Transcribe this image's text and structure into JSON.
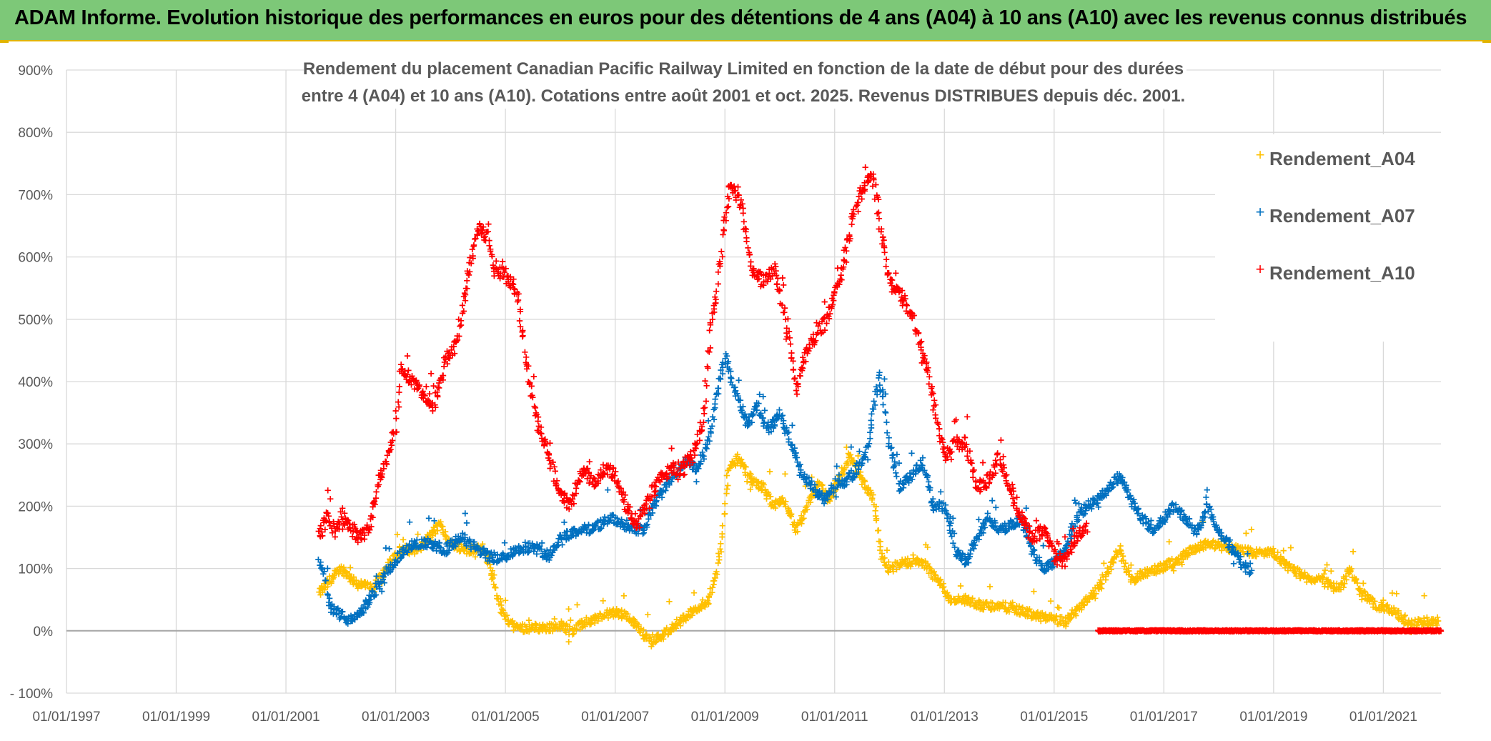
{
  "banner": {
    "title": "ADAM Informe. Evolution historique des performances en euros pour des détentions de 4 ans (A04) à 10 ans (A10) avec les revenus connus distribués"
  },
  "colors": {
    "banner_bg": "#7dc878",
    "banner_border": "#e0b400",
    "A04": "#ffc000",
    "A07": "#0070c0",
    "A10": "#ff0000",
    "grid": "#d9d9d9",
    "axis_text": "#595959"
  },
  "chart_data": {
    "type": "scatter",
    "title_line1": "Rendement du placement Canadian Pacific Railway Limited en fonction de la date de début pour des durées",
    "title_line2": "entre 4 (A04) et 10 ans (A10). Cotations entre août 2001 et oct. 2025. Revenus DISTRIBUES depuis déc. 2001.",
    "xlabel": "",
    "ylabel": "",
    "x_range": [
      1997.0,
      2022.05
    ],
    "ylim": [
      -100,
      900
    ],
    "y_ticks": [
      -100,
      0,
      100,
      200,
      300,
      400,
      500,
      600,
      700,
      800,
      900
    ],
    "y_tick_labels": [
      "- 100%",
      "0%",
      "100%",
      "200%",
      "300%",
      "400%",
      "500%",
      "600%",
      "700%",
      "800%",
      "900%"
    ],
    "x_ticks": [
      1997,
      1999,
      2001,
      2003,
      2005,
      2007,
      2009,
      2011,
      2013,
      2015,
      2017,
      2019,
      2021
    ],
    "x_tick_labels": [
      "01/01/1997",
      "01/01/1999",
      "01/01/2001",
      "01/01/2003",
      "01/01/2005",
      "01/01/2007",
      "01/01/2009",
      "01/01/2011",
      "01/01/2013",
      "01/01/2015",
      "01/01/2017",
      "01/01/2019",
      "01/01/2021"
    ],
    "legend_position": "top-right",
    "marker": "+",
    "series": [
      {
        "name": "Rendement_A04",
        "color": "#ffc000",
        "points": [
          [
            2001.6,
            60
          ],
          [
            2001.8,
            80
          ],
          [
            2002.0,
            100
          ],
          [
            2002.3,
            75
          ],
          [
            2002.6,
            70
          ],
          [
            2002.9,
            110
          ],
          [
            2003.1,
            130
          ],
          [
            2003.4,
            130
          ],
          [
            2003.8,
            170
          ],
          [
            2004.0,
            140
          ],
          [
            2004.3,
            130
          ],
          [
            2004.6,
            135
          ],
          [
            2004.8,
            80
          ],
          [
            2004.9,
            40
          ],
          [
            2005.0,
            20
          ],
          [
            2005.2,
            5
          ],
          [
            2005.5,
            5
          ],
          [
            2005.8,
            5
          ],
          [
            2006.0,
            10
          ],
          [
            2006.2,
            0
          ],
          [
            2006.5,
            15
          ],
          [
            2006.8,
            25
          ],
          [
            2007.0,
            30
          ],
          [
            2007.3,
            20
          ],
          [
            2007.5,
            -5
          ],
          [
            2007.7,
            -15
          ],
          [
            2007.9,
            -5
          ],
          [
            2008.1,
            10
          ],
          [
            2008.4,
            30
          ],
          [
            2008.7,
            50
          ],
          [
            2008.85,
            90
          ],
          [
            2008.95,
            150
          ],
          [
            2009.05,
            250
          ],
          [
            2009.2,
            280
          ],
          [
            2009.5,
            240
          ],
          [
            2009.7,
            230
          ],
          [
            2009.9,
            200
          ],
          [
            2010.1,
            210
          ],
          [
            2010.3,
            160
          ],
          [
            2010.5,
            200
          ],
          [
            2010.7,
            240
          ],
          [
            2010.9,
            210
          ],
          [
            2011.1,
            250
          ],
          [
            2011.3,
            280
          ],
          [
            2011.5,
            240
          ],
          [
            2011.7,
            210
          ],
          [
            2011.85,
            120
          ],
          [
            2012.0,
            100
          ],
          [
            2012.3,
            110
          ],
          [
            2012.6,
            110
          ],
          [
            2012.9,
            80
          ],
          [
            2013.1,
            50
          ],
          [
            2013.4,
            50
          ],
          [
            2013.7,
            40
          ],
          [
            2014.0,
            40
          ],
          [
            2014.3,
            35
          ],
          [
            2014.6,
            25
          ],
          [
            2014.9,
            20
          ],
          [
            2015.2,
            15
          ],
          [
            2015.5,
            40
          ],
          [
            2015.8,
            70
          ],
          [
            2016.0,
            100
          ],
          [
            2016.2,
            130
          ],
          [
            2016.4,
            80
          ],
          [
            2016.6,
            90
          ],
          [
            2016.9,
            100
          ],
          [
            2017.2,
            110
          ],
          [
            2017.5,
            130
          ],
          [
            2017.8,
            140
          ],
          [
            2018.1,
            135
          ],
          [
            2018.4,
            130
          ],
          [
            2018.7,
            125
          ],
          [
            2019.0,
            125
          ],
          [
            2019.3,
            100
          ],
          [
            2019.6,
            85
          ],
          [
            2019.9,
            80
          ],
          [
            2020.2,
            65
          ],
          [
            2020.4,
            100
          ],
          [
            2020.6,
            60
          ],
          [
            2020.9,
            40
          ],
          [
            2021.2,
            30
          ],
          [
            2021.5,
            10
          ],
          [
            2021.8,
            15
          ],
          [
            2022.0,
            15
          ]
        ]
      },
      {
        "name": "Rendement_A07",
        "color": "#0070c0",
        "points": [
          [
            2001.6,
            110
          ],
          [
            2001.7,
            90
          ],
          [
            2001.8,
            40
          ],
          [
            2002.0,
            25
          ],
          [
            2002.2,
            15
          ],
          [
            2002.4,
            35
          ],
          [
            2002.6,
            60
          ],
          [
            2002.8,
            90
          ],
          [
            2003.0,
            115
          ],
          [
            2003.3,
            140
          ],
          [
            2003.6,
            140
          ],
          [
            2003.9,
            130
          ],
          [
            2004.2,
            150
          ],
          [
            2004.5,
            130
          ],
          [
            2004.7,
            120
          ],
          [
            2004.9,
            115
          ],
          [
            2005.2,
            130
          ],
          [
            2005.5,
            135
          ],
          [
            2005.8,
            120
          ],
          [
            2006.0,
            150
          ],
          [
            2006.3,
            160
          ],
          [
            2006.6,
            165
          ],
          [
            2006.9,
            180
          ],
          [
            2007.2,
            170
          ],
          [
            2007.5,
            160
          ],
          [
            2007.7,
            200
          ],
          [
            2007.9,
            230
          ],
          [
            2008.1,
            250
          ],
          [
            2008.3,
            270
          ],
          [
            2008.5,
            260
          ],
          [
            2008.7,
            300
          ],
          [
            2008.9,
            400
          ],
          [
            2009.0,
            440
          ],
          [
            2009.2,
            380
          ],
          [
            2009.4,
            330
          ],
          [
            2009.6,
            360
          ],
          [
            2009.8,
            320
          ],
          [
            2010.0,
            350
          ],
          [
            2010.2,
            300
          ],
          [
            2010.4,
            250
          ],
          [
            2010.6,
            230
          ],
          [
            2010.8,
            210
          ],
          [
            2011.0,
            230
          ],
          [
            2011.2,
            240
          ],
          [
            2011.4,
            260
          ],
          [
            2011.6,
            290
          ],
          [
            2011.7,
            350
          ],
          [
            2011.8,
            410
          ],
          [
            2011.9,
            370
          ],
          [
            2012.0,
            300
          ],
          [
            2012.2,
            230
          ],
          [
            2012.4,
            250
          ],
          [
            2012.6,
            270
          ],
          [
            2012.8,
            200
          ],
          [
            2013.0,
            200
          ],
          [
            2013.2,
            130
          ],
          [
            2013.4,
            110
          ],
          [
            2013.6,
            150
          ],
          [
            2013.8,
            180
          ],
          [
            2014.0,
            160
          ],
          [
            2014.2,
            170
          ],
          [
            2014.4,
            180
          ],
          [
            2014.6,
            130
          ],
          [
            2014.8,
            100
          ],
          [
            2015.0,
            110
          ],
          [
            2015.2,
            130
          ],
          [
            2015.4,
            180
          ],
          [
            2015.6,
            200
          ],
          [
            2015.8,
            210
          ],
          [
            2016.0,
            230
          ],
          [
            2016.2,
            250
          ],
          [
            2016.4,
            210
          ],
          [
            2016.6,
            180
          ],
          [
            2016.8,
            160
          ],
          [
            2017.0,
            180
          ],
          [
            2017.2,
            200
          ],
          [
            2017.4,
            180
          ],
          [
            2017.6,
            160
          ],
          [
            2017.8,
            200
          ],
          [
            2018.0,
            160
          ],
          [
            2018.2,
            140
          ],
          [
            2018.4,
            110
          ],
          [
            2018.6,
            90
          ]
        ]
      },
      {
        "name": "Rendement_A10",
        "color": "#ff0000",
        "points": [
          [
            2001.6,
            150
          ],
          [
            2001.75,
            180
          ],
          [
            2001.9,
            160
          ],
          [
            2002.1,
            180
          ],
          [
            2002.3,
            150
          ],
          [
            2002.5,
            160
          ],
          [
            2002.7,
            240
          ],
          [
            2002.9,
            290
          ],
          [
            2003.0,
            330
          ],
          [
            2003.1,
            420
          ],
          [
            2003.3,
            400
          ],
          [
            2003.5,
            380
          ],
          [
            2003.7,
            360
          ],
          [
            2003.9,
            430
          ],
          [
            2004.1,
            460
          ],
          [
            2004.3,
            560
          ],
          [
            2004.5,
            650
          ],
          [
            2004.7,
            630
          ],
          [
            2004.8,
            580
          ],
          [
            2005.0,
            570
          ],
          [
            2005.2,
            550
          ],
          [
            2005.4,
            420
          ],
          [
            2005.6,
            330
          ],
          [
            2005.8,
            280
          ],
          [
            2006.0,
            220
          ],
          [
            2006.2,
            200
          ],
          [
            2006.4,
            260
          ],
          [
            2006.6,
            240
          ],
          [
            2006.8,
            260
          ],
          [
            2007.0,
            250
          ],
          [
            2007.2,
            200
          ],
          [
            2007.4,
            170
          ],
          [
            2007.6,
            210
          ],
          [
            2007.8,
            240
          ],
          [
            2008.0,
            260
          ],
          [
            2008.2,
            260
          ],
          [
            2008.4,
            280
          ],
          [
            2008.6,
            330
          ],
          [
            2008.75,
            500
          ],
          [
            2008.85,
            540
          ],
          [
            2009.0,
            660
          ],
          [
            2009.1,
            720
          ],
          [
            2009.3,
            680
          ],
          [
            2009.5,
            580
          ],
          [
            2009.7,
            560
          ],
          [
            2009.9,
            580
          ],
          [
            2010.1,
            500
          ],
          [
            2010.3,
            390
          ],
          [
            2010.5,
            450
          ],
          [
            2010.7,
            480
          ],
          [
            2010.9,
            510
          ],
          [
            2011.1,
            560
          ],
          [
            2011.3,
            650
          ],
          [
            2011.5,
            710
          ],
          [
            2011.7,
            730
          ],
          [
            2011.85,
            640
          ],
          [
            2012.0,
            560
          ],
          [
            2012.2,
            540
          ],
          [
            2012.4,
            510
          ],
          [
            2012.6,
            450
          ],
          [
            2012.8,
            370
          ],
          [
            2013.0,
            280
          ],
          [
            2013.2,
            300
          ],
          [
            2013.4,
            300
          ],
          [
            2013.6,
            230
          ],
          [
            2013.8,
            240
          ],
          [
            2014.0,
            280
          ],
          [
            2014.2,
            230
          ],
          [
            2014.4,
            180
          ],
          [
            2014.6,
            150
          ],
          [
            2014.8,
            160
          ],
          [
            2015.0,
            120
          ],
          [
            2015.2,
            110
          ],
          [
            2015.4,
            150
          ],
          [
            2015.6,
            170
          ]
        ],
        "zero_segment": [
          2015.8,
          2022.05
        ]
      }
    ]
  }
}
